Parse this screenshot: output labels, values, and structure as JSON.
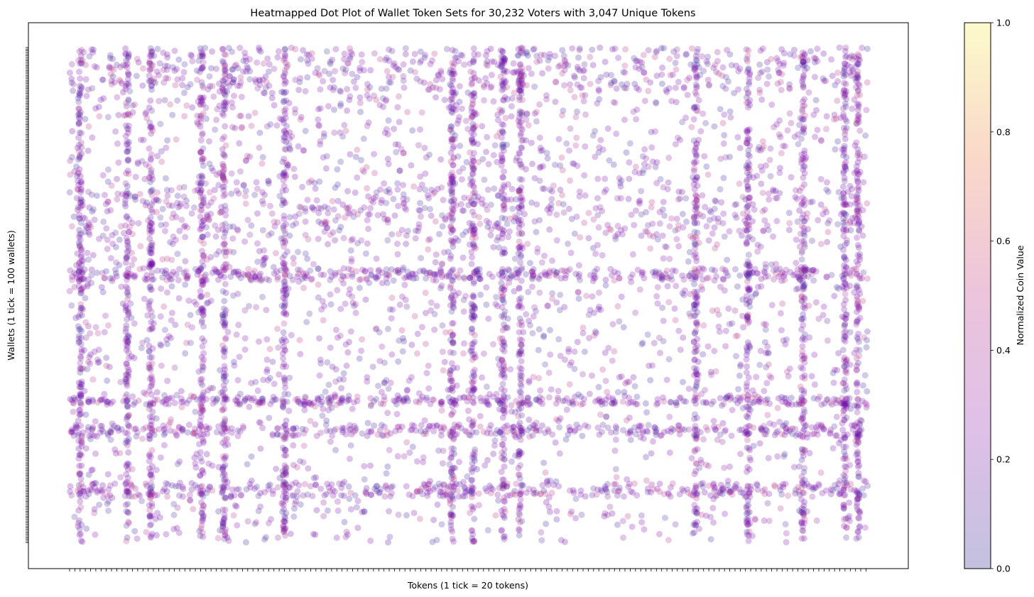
{
  "chart_data": {
    "type": "scatter",
    "title": "Heatmapped Dot Plot of Wallet Token Sets for 30,232 Voters with 3,047 Unique Tokens",
    "xlabel": "Tokens (1 tick = 20 tokens)",
    "ylabel": "Wallets (1 tick = 100 wallets)",
    "x_tick_interval": 20,
    "y_tick_interval": 100,
    "xlim": [
      0,
      3047
    ],
    "ylim": [
      0,
      30232
    ],
    "x_tick_labels_shown": false,
    "y_tick_labels_shown": false,
    "grid": false,
    "marker": "circle",
    "marker_alpha": 0.25,
    "colormap": "plasma",
    "colors": {
      "dominant_point": "#7a0dab",
      "low": "#0d0887",
      "mid": "#b83289",
      "high": "#f0f921"
    },
    "colorbar": {
      "label": "Normalized Coin Value",
      "min": 0.0,
      "max": 1.0,
      "ticks": [
        "0.0",
        "0.2",
        "0.4",
        "0.6",
        "0.8",
        "1.0"
      ]
    },
    "dense_token_columns": [
      40,
      220,
      310,
      505,
      590,
      820,
      1460,
      1540,
      1655,
      1720,
      2390,
      2590,
      2800,
      2960,
      3010
    ],
    "dense_wallet_bands": [
      [
        0,
        2600
      ],
      [
        8600,
        11800
      ],
      [
        13500,
        14200
      ],
      [
        21300,
        21800
      ],
      [
        23000,
        23700
      ],
      [
        26600,
        27400
      ]
    ]
  }
}
